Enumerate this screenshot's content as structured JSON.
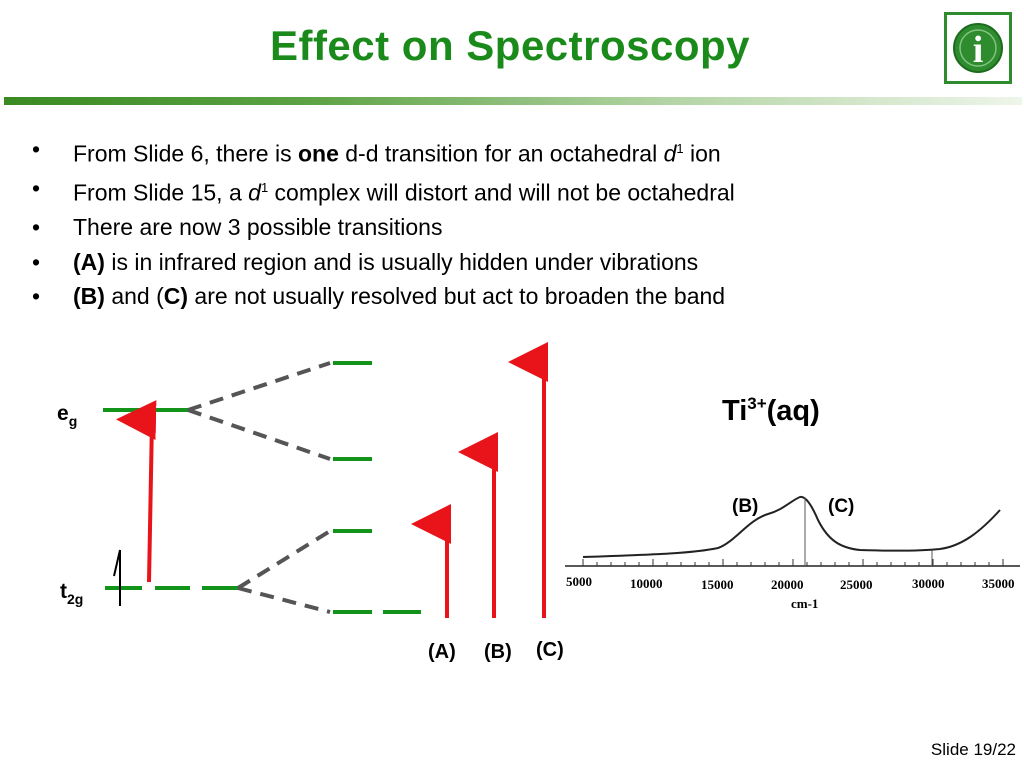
{
  "slide": {
    "title": "Effect on Spectroscopy",
    "slide_number": "Slide 19/22"
  },
  "logo": {
    "icon": "info-icon",
    "glyph": "i"
  },
  "bullets": [
    {
      "parts": [
        {
          "text": "From Slide 6, there is "
        },
        {
          "text": "one",
          "style": "bold"
        },
        {
          "text": " d-d transition for an octahedral "
        },
        {
          "text": "d",
          "style": "italic"
        },
        {
          "text": "1",
          "style": "sup"
        },
        {
          "text": " ion"
        }
      ]
    },
    {
      "parts": [
        {
          "text": "From Slide 15, a "
        },
        {
          "text": "d",
          "style": "italic"
        },
        {
          "text": "1",
          "style": "sup"
        },
        {
          "text": " complex will distort and will not be octahedral"
        }
      ]
    },
    {
      "parts": [
        {
          "text": "There are now 3 possible transitions"
        }
      ]
    },
    {
      "parts": [
        {
          "text": "(A)",
          "style": "bold"
        },
        {
          "text": " is in infrared region and is usually hidden under vibrations"
        }
      ]
    },
    {
      "parts": [
        {
          "text": "(B)",
          "style": "bold"
        },
        {
          "text": " and ("
        },
        {
          "text": "C)",
          "style": "bold"
        },
        {
          "text": " are not usually resolved but act to broaden the band"
        }
      ]
    }
  ],
  "energy_diagram": {
    "levels": {
      "eg": {
        "main": "e",
        "sub": "g"
      },
      "t2g": {
        "main": "t",
        "sub": "2g"
      }
    },
    "transition_labels": [
      "(A)",
      "(B)",
      "(C)"
    ],
    "colors": {
      "level": "#12941a",
      "dashed": "#555555",
      "arrow": "#e8141a"
    }
  },
  "spectrum": {
    "title": {
      "main": "Ti",
      "sup": "3+",
      "after": "(aq)"
    },
    "peak_labels": [
      "(B)",
      "(C)"
    ],
    "axis_ticks": [
      "5000",
      "10000",
      "15000",
      "20000",
      "25000",
      "30000",
      "35000"
    ],
    "axis_label": "cm-1"
  }
}
